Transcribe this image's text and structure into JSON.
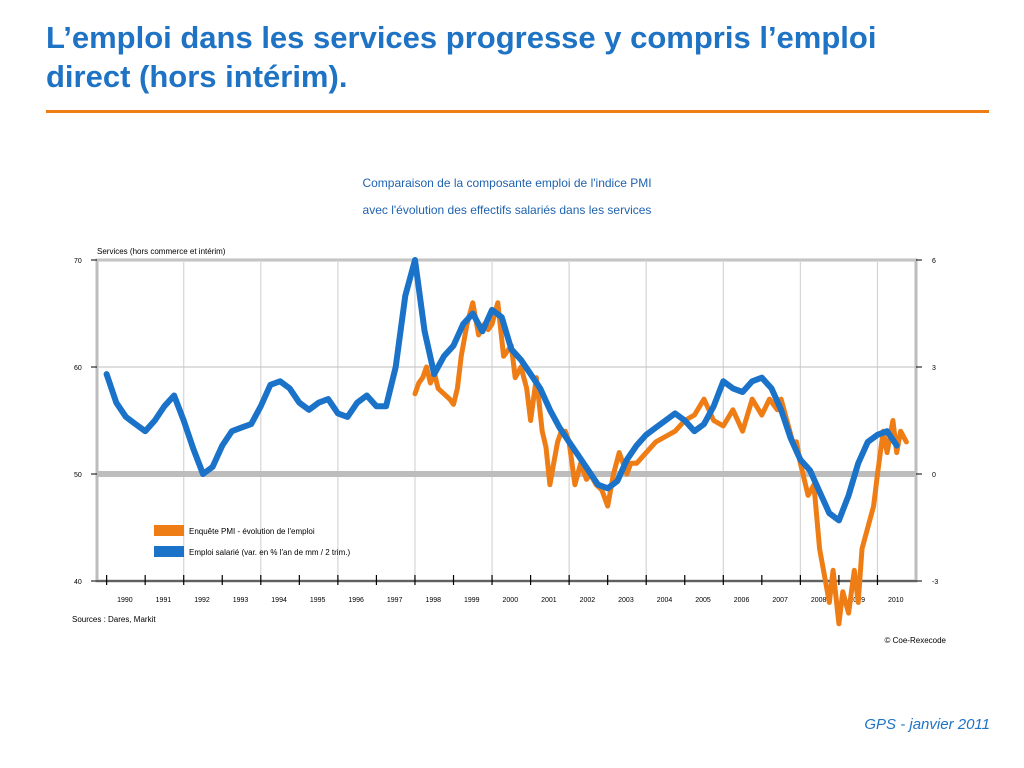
{
  "slide": {
    "title_line1": "L’emploi dans les services progresse y compris l’emploi",
    "title_line2": "direct (hors intérim).",
    "footer": "GPS - janvier 2011",
    "accent_color": "#ef7d16",
    "title_color": "#1f73c4"
  },
  "chart_data": {
    "type": "line",
    "title_line1": "Comparaison de la composante emploi de l'indice PMI",
    "title_line2": "avec l'évolution des effectifs salariés dans les services",
    "panel_label": "Services (hors commerce et intérim)",
    "source": "Sources : Dares, Markit",
    "credit": "© Coe-Rexecode",
    "left_axis": {
      "ticks": [
        "70",
        "60",
        "50",
        "40"
      ],
      "ylim": [
        40,
        70
      ]
    },
    "right_axis": {
      "ticks": [
        "6",
        "3",
        "0",
        "-3"
      ],
      "ylim": [
        -3,
        6
      ]
    },
    "x_tick_labels": [
      "1990",
      "1991",
      "1992",
      "1993",
      "1994",
      "1995",
      "1996",
      "1997",
      "1998",
      "1999",
      "2000",
      "2001",
      "2002",
      "2003",
      "2004",
      "2005",
      "2006",
      "2007",
      "2008",
      "2009",
      "2010"
    ],
    "xlim": [
      1989.75,
      2011.0
    ],
    "reference_line": {
      "axis": "left",
      "value": 50
    },
    "grid": true,
    "legend_position": "lower-left",
    "series": [
      {
        "name": "Enquête PMI - évolution de l'emploi",
        "axis": "left",
        "color": "#ef7d16",
        "x": [
          1998.0,
          1998.1,
          1998.2,
          1998.3,
          1998.4,
          1998.5,
          1998.6,
          1998.75,
          1998.9,
          1999.0,
          1999.1,
          1999.2,
          1999.35,
          1999.5,
          1999.65,
          1999.8,
          1999.9,
          2000.0,
          2000.15,
          2000.3,
          2000.5,
          2000.6,
          2000.75,
          2000.9,
          2001.0,
          2001.15,
          2001.3,
          2001.4,
          2001.5,
          2001.6,
          2001.7,
          2001.8,
          2001.9,
          2002.0,
          2002.15,
          2002.3,
          2002.45,
          2002.55,
          2002.7,
          2002.85,
          2003.0,
          2003.15,
          2003.3,
          2003.5,
          2003.6,
          2003.75,
          2004.0,
          2004.25,
          2004.5,
          2004.75,
          2005.0,
          2005.25,
          2005.5,
          2005.75,
          2006.0,
          2006.25,
          2006.5,
          2006.75,
          2007.0,
          2007.2,
          2007.4,
          2007.5,
          2007.65,
          2007.8,
          2007.9,
          2008.0,
          2008.2,
          2008.35,
          2008.5,
          2008.6,
          2008.75,
          2008.85,
          2009.0,
          2009.1,
          2009.25,
          2009.4,
          2009.5,
          2009.6,
          2009.75,
          2009.9,
          2010.0,
          2010.15,
          2010.25,
          2010.4,
          2010.5,
          2010.6,
          2010.75
        ],
        "y": [
          57.5,
          58.5,
          59,
          60,
          58.5,
          59.5,
          58,
          57.5,
          57,
          56.5,
          58,
          61,
          64,
          66,
          63,
          64,
          63.5,
          64,
          66,
          61,
          62,
          59,
          60,
          58,
          55,
          59,
          54,
          52.5,
          49,
          51,
          53,
          54,
          54,
          53,
          49,
          51,
          49.5,
          50,
          49,
          48.5,
          47,
          50,
          52,
          50,
          51,
          51,
          52,
          53,
          53.5,
          54,
          55,
          55.5,
          57,
          55,
          54.5,
          56,
          54,
          57,
          55.5,
          57,
          56,
          57,
          55,
          53,
          53,
          51,
          48,
          49,
          43,
          41,
          38,
          41,
          36,
          39,
          37,
          41,
          38,
          43,
          45,
          47,
          50,
          54,
          52,
          55,
          52,
          54,
          53
        ]
      },
      {
        "name": "Emploi salarié (var. en % l'an de mm / 2 trim.)",
        "axis": "right",
        "color": "#1a73c9",
        "x": [
          1990.0,
          1990.25,
          1990.5,
          1990.75,
          1991.0,
          1991.25,
          1991.5,
          1991.75,
          1992.0,
          1992.25,
          1992.5,
          1992.75,
          1993.0,
          1993.25,
          1993.5,
          1993.75,
          1994.0,
          1994.25,
          1994.5,
          1994.75,
          1995.0,
          1995.25,
          1995.5,
          1995.75,
          1996.0,
          1996.25,
          1996.5,
          1996.75,
          1997.0,
          1997.25,
          1997.5,
          1997.75,
          1998.0,
          1998.25,
          1998.5,
          1998.75,
          1999.0,
          1999.25,
          1999.5,
          1999.75,
          2000.0,
          2000.25,
          2000.5,
          2000.75,
          2001.0,
          2001.25,
          2001.5,
          2001.75,
          2002.0,
          2002.25,
          2002.5,
          2002.75,
          2003.0,
          2003.25,
          2003.5,
          2003.75,
          2004.0,
          2004.25,
          2004.5,
          2004.75,
          2005.0,
          2005.25,
          2005.5,
          2005.75,
          2006.0,
          2006.25,
          2006.5,
          2006.75,
          2007.0,
          2007.25,
          2007.5,
          2007.75,
          2008.0,
          2008.25,
          2008.5,
          2008.75,
          2009.0,
          2009.25,
          2009.5,
          2009.75,
          2010.0,
          2010.25,
          2010.5
        ],
        "y": [
          2.8,
          2.0,
          1.6,
          1.4,
          1.2,
          1.5,
          1.9,
          2.2,
          1.5,
          0.7,
          0.0,
          0.2,
          0.8,
          1.2,
          1.3,
          1.4,
          1.9,
          2.5,
          2.6,
          2.4,
          2.0,
          1.8,
          2.0,
          2.1,
          1.7,
          1.6,
          2.0,
          2.2,
          1.9,
          1.9,
          3.0,
          5.0,
          6.0,
          4.0,
          2.8,
          3.3,
          3.6,
          4.2,
          4.5,
          4.0,
          4.6,
          4.4,
          3.5,
          3.2,
          2.8,
          2.4,
          1.8,
          1.3,
          0.9,
          0.5,
          0.1,
          -0.3,
          -0.4,
          -0.2,
          0.4,
          0.8,
          1.1,
          1.3,
          1.5,
          1.7,
          1.5,
          1.2,
          1.4,
          1.9,
          2.6,
          2.4,
          2.3,
          2.6,
          2.7,
          2.4,
          1.8,
          1.0,
          0.4,
          0.1,
          -0.5,
          -1.1,
          -1.3,
          -0.6,
          0.3,
          0.9,
          1.1,
          1.2,
          0.8
        ]
      }
    ]
  }
}
